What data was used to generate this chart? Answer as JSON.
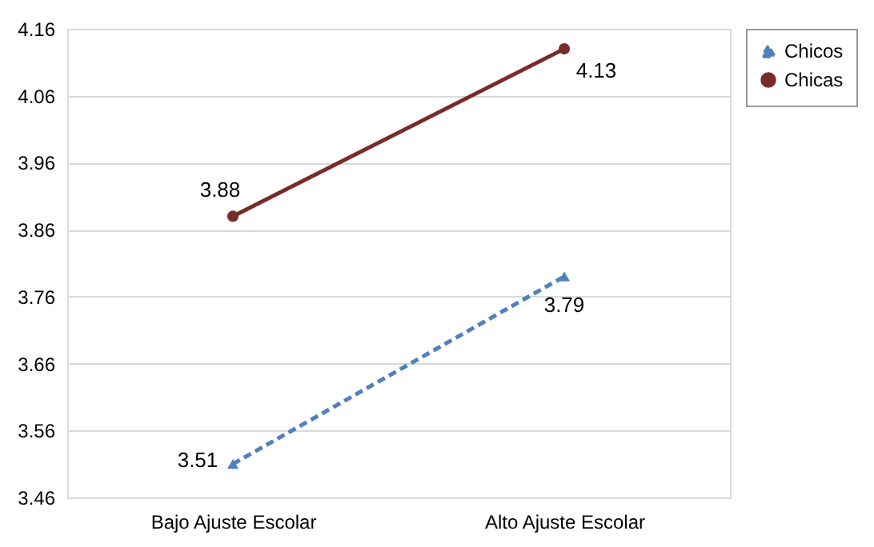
{
  "chart_data": {
    "type": "line",
    "categories": [
      "Bajo Ajuste Escolar",
      "Alto Ajuste Escolar"
    ],
    "series": [
      {
        "name": "Chicos",
        "color": "#4f81bd",
        "values": [
          3.51,
          3.79
        ],
        "marker": "triangle",
        "line_style": "dashed"
      },
      {
        "name": "Chicas",
        "color": "#772c2a",
        "values": [
          3.88,
          4.13
        ],
        "marker": "circle",
        "line_style": "solid"
      }
    ],
    "ylim": [
      3.46,
      4.16
    ],
    "yticks": [
      3.46,
      3.56,
      3.66,
      3.76,
      3.86,
      3.96,
      4.06,
      4.16
    ],
    "grid": "y",
    "legend": "right",
    "data_labels": true
  }
}
